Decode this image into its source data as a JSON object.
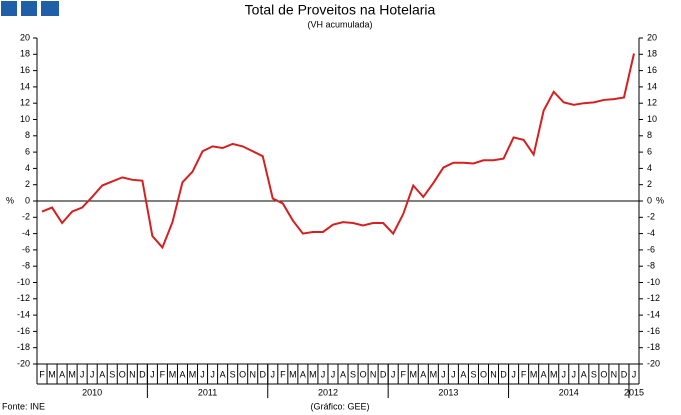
{
  "chart_data": {
    "type": "line",
    "title": "Total de Proveitos na Hotelaria",
    "subtitle": "(VH acumulada)",
    "ylabel": "%",
    "categories": [
      "F",
      "M",
      "A",
      "M",
      "J",
      "J",
      "A",
      "S",
      "O",
      "N",
      "D",
      "J",
      "F",
      "M",
      "A",
      "M",
      "J",
      "J",
      "A",
      "S",
      "O",
      "N",
      "D",
      "J",
      "F",
      "M",
      "A",
      "M",
      "J",
      "J",
      "A",
      "S",
      "O",
      "N",
      "D",
      "J",
      "F",
      "M",
      "A",
      "M",
      "J",
      "J",
      "A",
      "S",
      "O",
      "N",
      "D",
      "J",
      "F",
      "M",
      "A",
      "M",
      "J",
      "J",
      "A",
      "S",
      "O",
      "N",
      "D",
      "J"
    ],
    "years": [
      "2010",
      "2011",
      "2012",
      "2013",
      "2014",
      "2015"
    ],
    "series": [
      {
        "name": "Total de Proveitos",
        "color": "#d42020",
        "values": [
          -1.3,
          -0.8,
          -2.7,
          -1.3,
          -0.8,
          0.5,
          1.9,
          2.4,
          2.9,
          2.6,
          2.5,
          -4.3,
          -5.7,
          -2.6,
          2.3,
          3.6,
          6.1,
          6.7,
          6.5,
          7.0,
          6.7,
          6.1,
          5.5,
          0.3,
          -0.3,
          -2.4,
          -4.0,
          -3.8,
          -3.8,
          -2.9,
          -2.6,
          -2.7,
          -3.0,
          -2.7,
          -2.7,
          -4.0,
          -1.6,
          1.9,
          0.5,
          2.2,
          4.1,
          4.7,
          4.7,
          4.6,
          5.0,
          5.0,
          5.2,
          7.8,
          7.5,
          5.7,
          11.1,
          13.4,
          12.1,
          11.8,
          12.0,
          12.1,
          12.4,
          12.5,
          12.7,
          18.1
        ]
      }
    ],
    "ylim": [
      -20,
      20
    ],
    "yticks": [
      -20,
      -18,
      -16,
      -14,
      -12,
      -10,
      -8,
      -6,
      -4,
      -2,
      0,
      2,
      4,
      6,
      8,
      10,
      12,
      14,
      16,
      18,
      20
    ],
    "source": "Fonte: INE",
    "credit": "(Gráfico: GEE)"
  }
}
